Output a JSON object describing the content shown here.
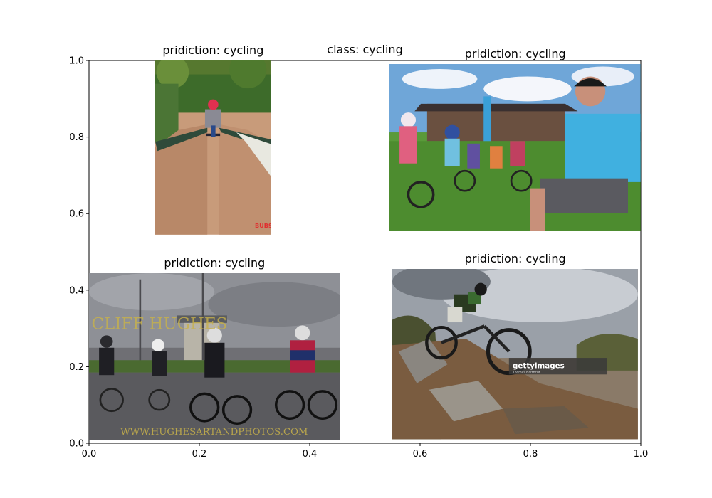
{
  "chart_data": {
    "type": "scatter",
    "title": "class: cycling",
    "xlim": [
      0,
      1
    ],
    "ylim": [
      0,
      1
    ],
    "xticks": [
      "0.0",
      "0.2",
      "0.4",
      "0.6",
      "0.8",
      "1.0"
    ],
    "yticks": [
      "0.0",
      "0.2",
      "0.4",
      "0.6",
      "0.8",
      "1.0"
    ],
    "xtick_values": [
      0,
      0.2,
      0.4,
      0.6,
      0.8,
      1.0
    ],
    "ytick_values": [
      0,
      0.2,
      0.4,
      0.6,
      0.8,
      1.0
    ],
    "grid": false,
    "images": [
      {
        "label": "pridiction: cycling",
        "x": [
          0.12,
          0.33
        ],
        "y": [
          0.545,
          1.0
        ],
        "content": "child-on-bike-path",
        "watermark": "BUZZING BUBS"
      },
      {
        "label": "pridiction: cycling",
        "x": [
          0.545,
          1.0
        ],
        "y": [
          0.555,
          0.99
        ],
        "content": "kids-cycling-class"
      },
      {
        "label": "pridiction: cycling",
        "x": [
          0.0,
          0.455
        ],
        "y": [
          0.01,
          0.445
        ],
        "content": "road-cyclists-race",
        "watermark": "WWW.HUGHESARTANDPHOTOS.COM",
        "watermark2": "CLIFF HUGHES"
      },
      {
        "label": "pridiction: cycling",
        "x": [
          0.55,
          0.995
        ],
        "y": [
          0.01,
          0.455
        ],
        "content": "mountain-biker-rocks",
        "watermark": "gettyimages",
        "watermark_sub": "Thomas Northcut"
      }
    ]
  }
}
